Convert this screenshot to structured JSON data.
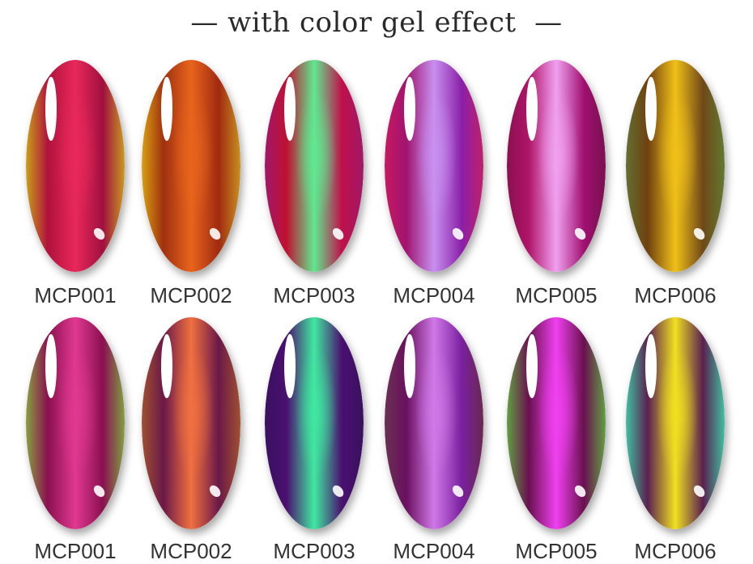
{
  "title": "— with color gel effect  —",
  "rows": [
    {
      "items": [
        {
          "label": "MCP001",
          "colors": [
            "#c8a018",
            "#b0123c",
            "#e8285a",
            "#a01040",
            "#c89a20"
          ]
        },
        {
          "label": "MCP002",
          "colors": [
            "#d8a010",
            "#a03010",
            "#e8641c",
            "#a02a10",
            "#c89020"
          ]
        },
        {
          "label": "MCP003",
          "colors": [
            "#a0186a",
            "#c01030",
            "#60e890",
            "#c0104a",
            "#a01868"
          ]
        },
        {
          "label": "MCP004",
          "colors": [
            "#c81860",
            "#a01470",
            "#c890f0",
            "#8a20a8",
            "#c0206a"
          ]
        },
        {
          "label": "MCP005",
          "colors": [
            "#8a1050",
            "#b01468",
            "#f0a0f0",
            "#a01070",
            "#7a1050"
          ]
        },
        {
          "label": "MCP006",
          "colors": [
            "#607030",
            "#704010",
            "#f0c018",
            "#704818",
            "#607a30"
          ]
        }
      ]
    },
    {
      "items": [
        {
          "label": "MCP001",
          "colors": [
            "#88a040",
            "#8a1050",
            "#e03890",
            "#8a1050",
            "#80a040"
          ]
        },
        {
          "label": "MCP002",
          "colors": [
            "#a05030",
            "#6a1848",
            "#f07040",
            "#6a1848",
            "#a05030"
          ]
        },
        {
          "label": "MCP003",
          "colors": [
            "#3a1060",
            "#4a1070",
            "#40e8a0",
            "#4a1070",
            "#3a1060"
          ]
        },
        {
          "label": "MCP004",
          "colors": [
            "#6a3050",
            "#6a1060",
            "#d078e8",
            "#7a20a0",
            "#6a2850"
          ]
        },
        {
          "label": "MCP005",
          "colors": [
            "#60a040",
            "#6a1050",
            "#f040f0",
            "#6a1050",
            "#60a040"
          ]
        },
        {
          "label": "MCP006",
          "colors": [
            "#40c0a0",
            "#5a2050",
            "#f0e020",
            "#5a2050",
            "#40c0a0"
          ]
        }
      ]
    }
  ]
}
